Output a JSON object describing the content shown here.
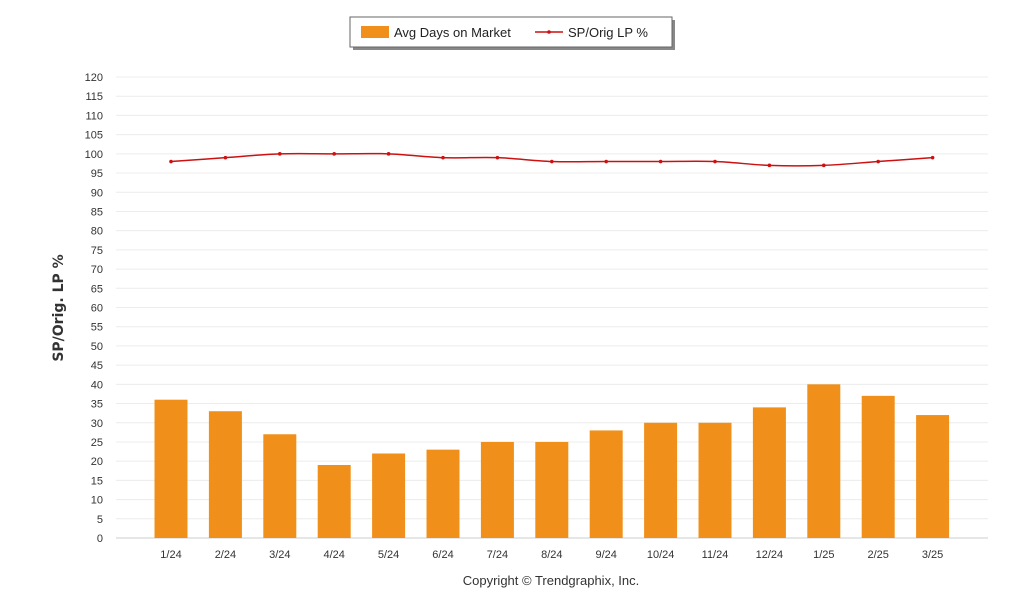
{
  "chart_data": {
    "type": "bar",
    "categories": [
      "1/24",
      "2/24",
      "3/24",
      "4/24",
      "5/24",
      "6/24",
      "7/24",
      "8/24",
      "9/24",
      "10/24",
      "11/24",
      "12/24",
      "1/25",
      "2/25",
      "3/25"
    ],
    "series": [
      {
        "name": "Avg Days on Market",
        "type": "bar",
        "color": "#f0901a",
        "values": [
          36,
          33,
          27,
          19,
          22,
          23,
          25,
          25,
          28,
          30,
          30,
          34,
          40,
          37,
          32
        ]
      },
      {
        "name": "SP/Orig LP %",
        "type": "line",
        "color": "#cc1111",
        "values": [
          98,
          99,
          100,
          100,
          100,
          99,
          99,
          98,
          98,
          98,
          98,
          97,
          97,
          98,
          99
        ]
      }
    ],
    "ylabel": "SP/Orig. LP %",
    "ylim": [
      0,
      120
    ],
    "ytick_step": 5,
    "grid": true,
    "legend_position": "top-center"
  },
  "footer": {
    "copyright": "Copyright © Trendgraphix, Inc."
  }
}
